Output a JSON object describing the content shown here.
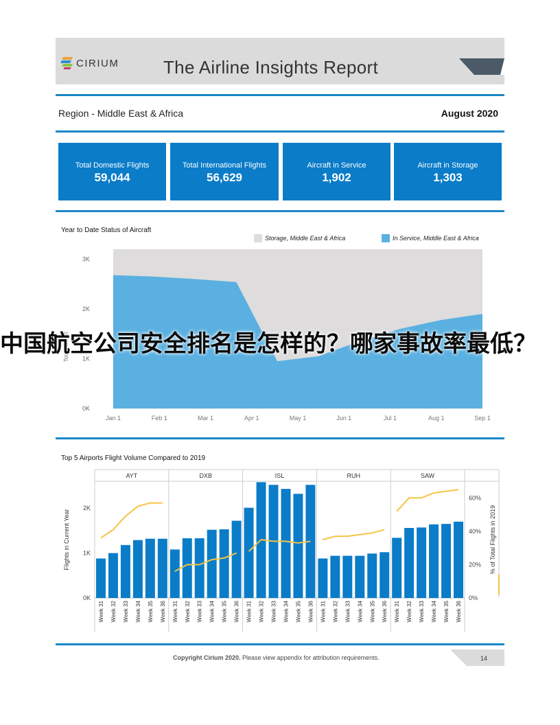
{
  "header": {
    "brand": "CIRIUM",
    "title": "The Airline Insights Report"
  },
  "meta": {
    "region": "Region - Middle East & Africa",
    "month": "August 2020"
  },
  "kpis": [
    {
      "label": "Total Domestic Flights",
      "value": "59,044"
    },
    {
      "label": "Total International Flights",
      "value": "56,629"
    },
    {
      "label": "Aircraft in Service",
      "value": "1,902"
    },
    {
      "label": "Aircraft in Storage",
      "value": "1,303"
    }
  ],
  "overlay_text": "中国航空公司安全排名是怎样的？哪家事故率最低？",
  "chart_data": [
    {
      "type": "area",
      "title": "Year to Date Status of Aircraft",
      "ylabel": "Total Aircraft",
      "ylim": [
        0,
        3200
      ],
      "yticks": [
        "0K",
        "1K",
        "2K",
        "3K"
      ],
      "x_ticks": [
        "Jan 1",
        "Feb 1",
        "Mar 1",
        "Apr 1",
        "May 1",
        "Jun 1",
        "Jul 1",
        "Aug 1",
        "Sep 1"
      ],
      "stacked": true,
      "series": [
        {
          "name": "In Service, Middle East & Africa",
          "color": "#5ab0e0",
          "values": [
            2680,
            2650,
            2600,
            2540,
            950,
            1050,
            1350,
            1600,
            1780,
            1900
          ]
        },
        {
          "name": "Storage, Middle East & Africa",
          "color": "#dedcdd",
          "values": [
            520,
            550,
            600,
            660,
            2250,
            2150,
            1850,
            1600,
            1420,
            1300
          ]
        }
      ]
    },
    {
      "type": "bar",
      "title": "Top 5 Airports Flight Volume Compared to 2019",
      "ylabel": "Flights in Current Year",
      "y2label": "% of Total Flights in 2019",
      "ylim": [
        0,
        2600
      ],
      "yticks": [
        "0K",
        "1K",
        "2K"
      ],
      "y2ticks": [
        "0%",
        "20%",
        "40%",
        "60%"
      ],
      "y2lim": [
        0,
        70
      ],
      "categories": [
        "Week 31",
        "Week 32",
        "Week 33",
        "Week 34",
        "Week 35",
        "Week 36"
      ],
      "airports": [
        {
          "name": "AYT",
          "bars": [
            880,
            1000,
            1180,
            1290,
            1320,
            1320
          ],
          "pct": [
            36,
            41,
            49,
            55,
            57,
            57
          ]
        },
        {
          "name": "DXB",
          "bars": [
            1080,
            1330,
            1330,
            1520,
            1530,
            1720
          ],
          "pct": [
            16,
            20,
            20,
            23,
            24,
            27
          ]
        },
        {
          "name": "ISL",
          "bars": [
            2010,
            2580,
            2520,
            2430,
            2320,
            2520
          ],
          "pct": [
            28,
            35,
            34,
            34,
            33,
            34
          ]
        },
        {
          "name": "RUH",
          "bars": [
            880,
            940,
            940,
            940,
            990,
            1020
          ],
          "pct": [
            35,
            37,
            37,
            38,
            39,
            41
          ]
        },
        {
          "name": "SAW",
          "bars": [
            1340,
            1560,
            1570,
            1640,
            1650,
            1700
          ],
          "pct": [
            52,
            60,
            60,
            63,
            64,
            65
          ]
        }
      ],
      "bar_color": "#0a7cc8",
      "line_color": "#f6c343"
    }
  ],
  "footer": {
    "copyright_bold": "Copyright Cirium 2020.",
    "copyright_rest": " Please view appendix for attribution requirements.",
    "page": "14"
  }
}
